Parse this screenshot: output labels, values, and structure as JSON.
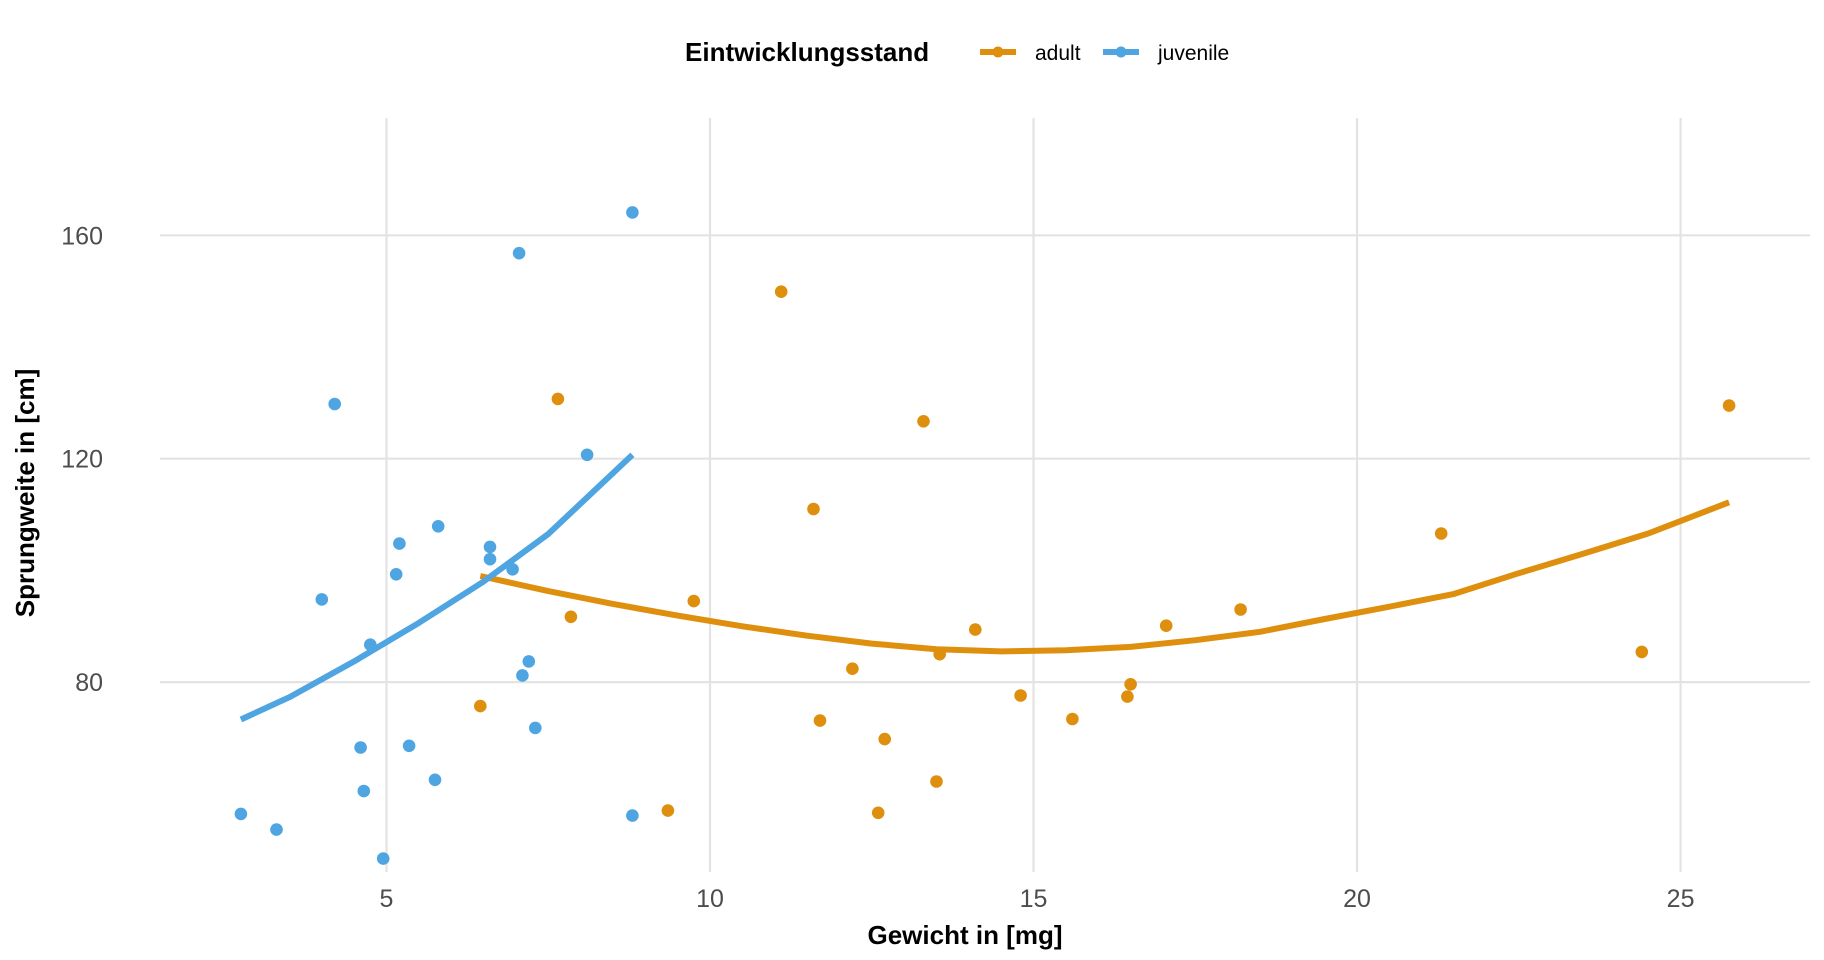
{
  "chart_data": {
    "type": "scatter",
    "xlabel": "Gewicht in [mg]",
    "ylabel": "Sprungweite in [cm]",
    "xlim": [
      1.5,
      27.0
    ],
    "ylim": [
      46.0,
      181.0
    ],
    "x_ticks": [
      5,
      10,
      15,
      20,
      25
    ],
    "y_ticks": [
      80,
      120,
      160
    ],
    "x_tick_labels": [
      "5",
      "10",
      "15",
      "20",
      "25"
    ],
    "y_tick_labels": [
      "80",
      "120",
      "160"
    ],
    "grid": true,
    "legend": {
      "title": "Eintwicklungsstand",
      "placement": "top",
      "entries": [
        "adult",
        "juvenile"
      ]
    },
    "series": [
      {
        "name": "adult",
        "color": "#df8f0e",
        "points": [
          [
            6.45,
            75.7
          ],
          [
            7.65,
            130.7
          ],
          [
            7.85,
            91.7
          ],
          [
            9.35,
            57.0
          ],
          [
            9.75,
            94.5
          ],
          [
            11.1,
            149.9
          ],
          [
            11.6,
            111.0
          ],
          [
            11.7,
            73.1
          ],
          [
            12.2,
            82.4
          ],
          [
            12.6,
            56.6
          ],
          [
            12.7,
            69.8
          ],
          [
            13.3,
            126.7
          ],
          [
            13.5,
            62.2
          ],
          [
            13.55,
            85.0
          ],
          [
            14.1,
            89.4
          ],
          [
            14.8,
            77.6
          ],
          [
            15.6,
            73.4
          ],
          [
            16.45,
            77.4
          ],
          [
            16.5,
            79.6
          ],
          [
            17.05,
            90.1
          ],
          [
            18.2,
            93.0
          ],
          [
            21.3,
            106.6
          ],
          [
            24.4,
            85.4
          ],
          [
            25.75,
            129.5
          ]
        ],
        "trend": [
          [
            6.45,
            99.0
          ],
          [
            7.5,
            96.3
          ],
          [
            8.5,
            94.0
          ],
          [
            9.5,
            91.9
          ],
          [
            10.5,
            90.0
          ],
          [
            11.5,
            88.3
          ],
          [
            12.5,
            86.9
          ],
          [
            13.5,
            85.9
          ],
          [
            14.5,
            85.5
          ],
          [
            15.5,
            85.7
          ],
          [
            16.5,
            86.3
          ],
          [
            17.5,
            87.5
          ],
          [
            18.5,
            89.0
          ],
          [
            19.5,
            91.3
          ],
          [
            20.5,
            93.5
          ],
          [
            21.5,
            95.8
          ],
          [
            22.5,
            99.5
          ],
          [
            23.5,
            103.0
          ],
          [
            24.5,
            106.6
          ],
          [
            25.75,
            112.2
          ]
        ]
      },
      {
        "name": "juvenile",
        "color": "#4ea5e2",
        "points": [
          [
            2.75,
            56.4
          ],
          [
            3.3,
            53.6
          ],
          [
            4.0,
            94.8
          ],
          [
            4.2,
            129.8
          ],
          [
            4.6,
            68.3
          ],
          [
            4.65,
            60.5
          ],
          [
            4.75,
            86.7
          ],
          [
            4.95,
            48.4
          ],
          [
            5.15,
            99.3
          ],
          [
            5.2,
            104.8
          ],
          [
            5.35,
            68.6
          ],
          [
            5.75,
            62.5
          ],
          [
            5.8,
            107.9
          ],
          [
            6.6,
            104.2
          ],
          [
            6.6,
            102.0
          ],
          [
            6.95,
            100.2
          ],
          [
            7.05,
            156.8
          ],
          [
            7.1,
            81.2
          ],
          [
            7.2,
            83.7
          ],
          [
            7.3,
            71.8
          ],
          [
            8.1,
            120.7
          ],
          [
            8.8,
            164.1
          ],
          [
            8.8,
            56.1
          ]
        ],
        "trend": [
          [
            2.75,
            73.3
          ],
          [
            3.5,
            77.3
          ],
          [
            4.5,
            83.7
          ],
          [
            5.5,
            90.6
          ],
          [
            6.5,
            98.0
          ],
          [
            7.5,
            106.5
          ],
          [
            8.8,
            120.7
          ]
        ]
      }
    ]
  }
}
